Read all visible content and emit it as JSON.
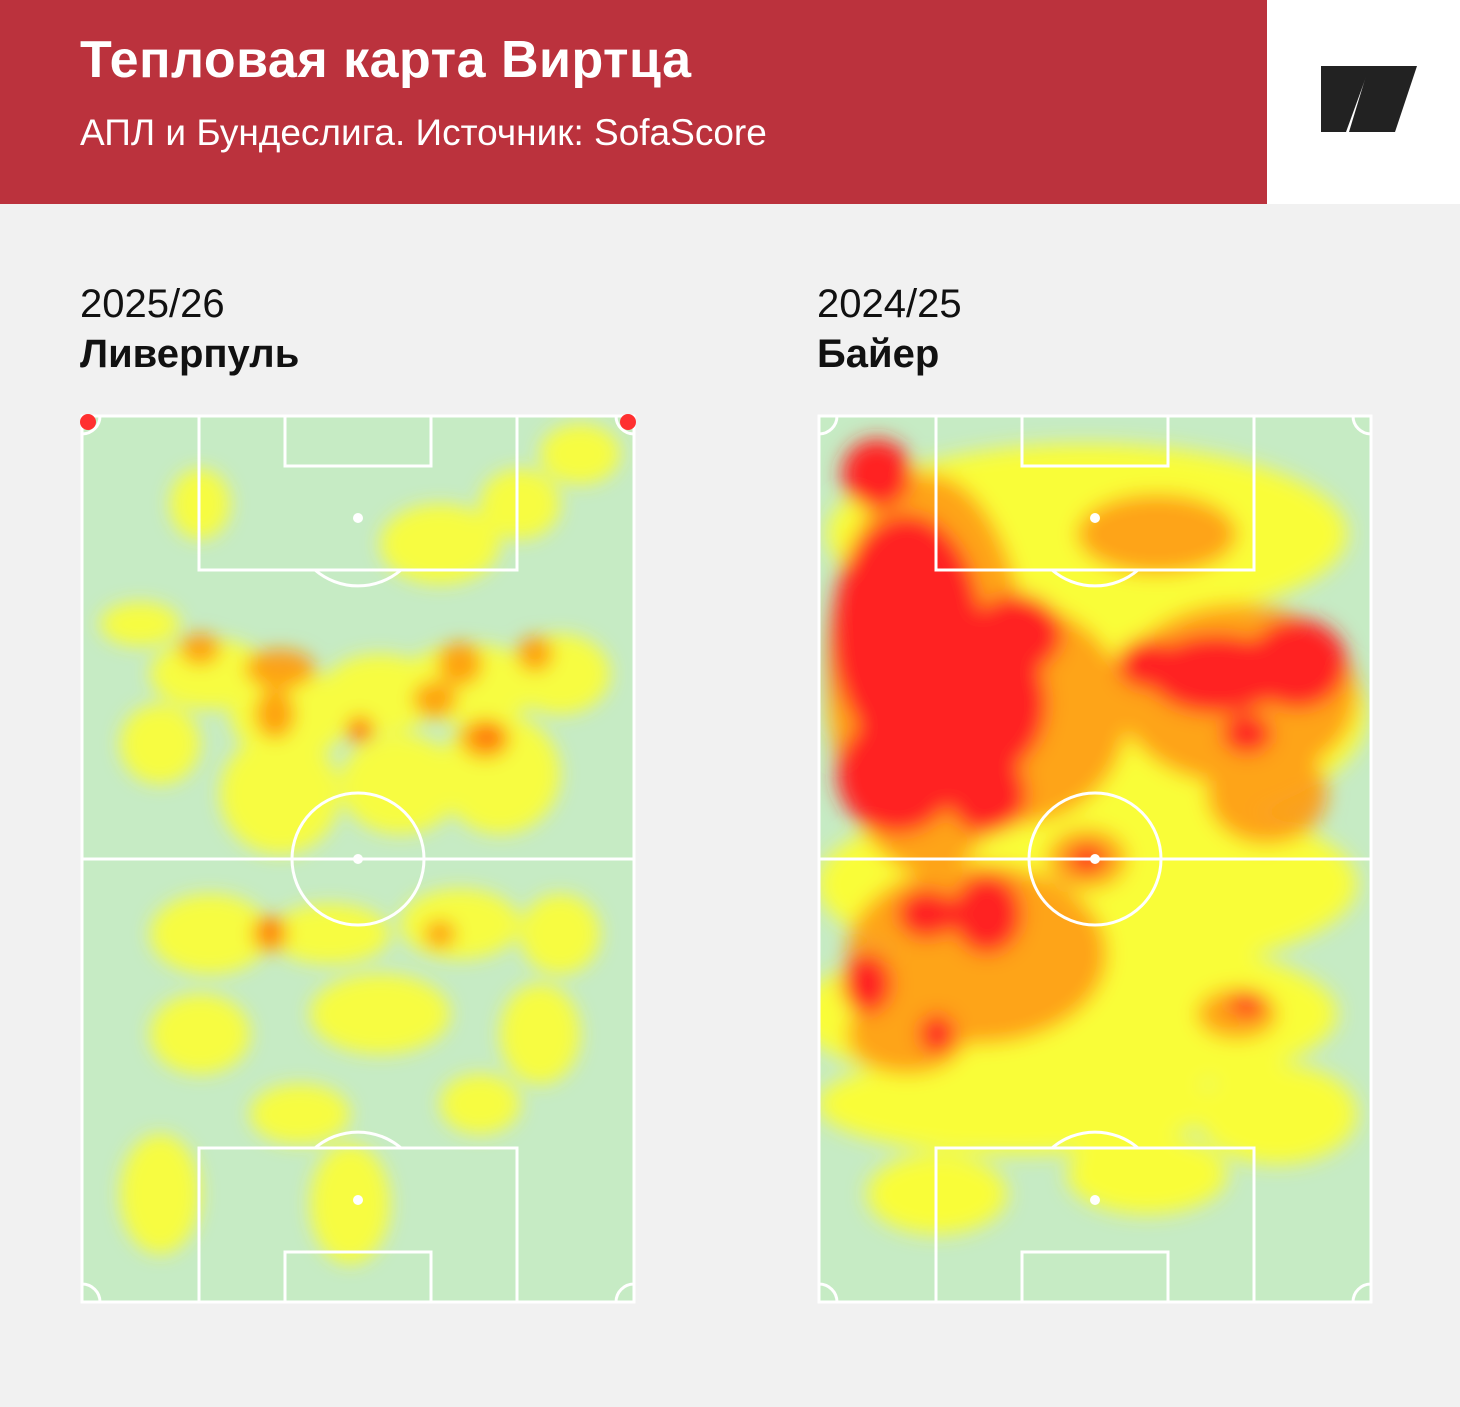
{
  "header": {
    "title": "Тепловая карта Виртца",
    "subtitle": "АПЛ и Бундеслига. Источник: SofaScore"
  },
  "brand": {
    "logo_icon": "sports-ru-logo-icon"
  },
  "colors": {
    "header_bg": "#bb323d",
    "pitch": "#c6ebc4",
    "heat_low": "#ffff2a",
    "heat_mid": "#ff9a10",
    "heat_high": "#ff2020"
  },
  "panels": [
    {
      "season": "2025/26",
      "team": "Ливерпуль"
    },
    {
      "season": "2024/25",
      "team": "Байер"
    }
  ]
}
